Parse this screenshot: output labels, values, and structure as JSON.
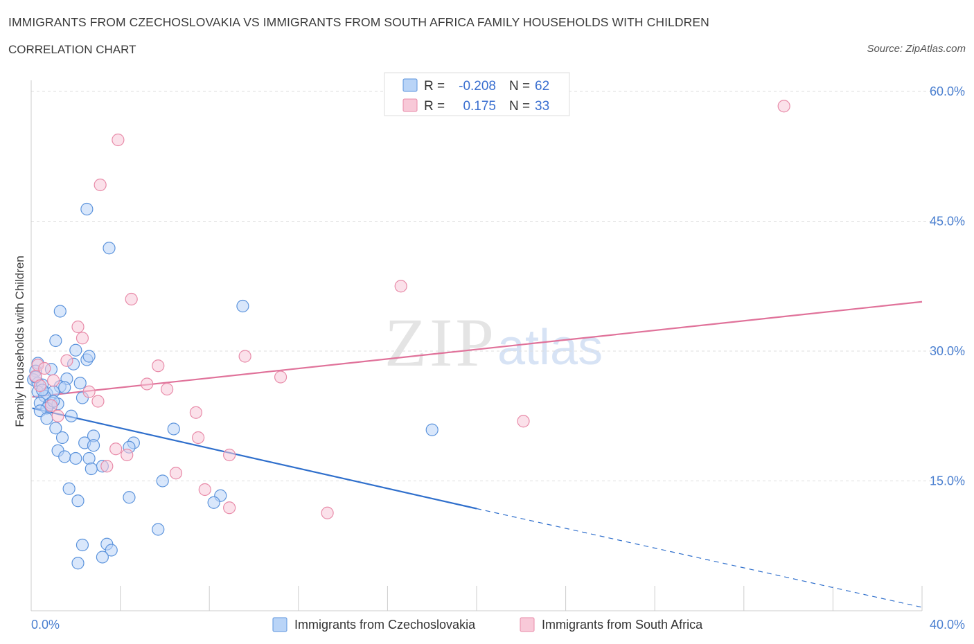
{
  "header": {
    "title": "IMMIGRANTS FROM CZECHOSLOVAKIA VS IMMIGRANTS FROM SOUTH AFRICA FAMILY HOUSEHOLDS WITH CHILDREN",
    "subtitle": "CORRELATION CHART",
    "source": "Source: ZipAtlas.com"
  },
  "watermark": {
    "zip": "ZIP",
    "atlas": "atlas"
  },
  "stats": {
    "r_label": "R =",
    "n_label": "N =",
    "czech": {
      "r": "-0.208",
      "n": "62"
    },
    "south_africa": {
      "r": "0.175",
      "n": "33"
    }
  },
  "colors": {
    "czech_fill": "#b9d4f7",
    "czech_stroke": "#5b93dc",
    "czech_line": "#2f6fcc",
    "sa_fill": "#f8c9d8",
    "sa_stroke": "#e88aa8",
    "sa_line": "#e0729a",
    "grid": "#dddddd",
    "tick_text": "#4a7fd0"
  },
  "chart_data": {
    "type": "scatter",
    "title": "IMMIGRANTS FROM CZECHOSLOVAKIA VS IMMIGRANTS FROM SOUTH AFRICA FAMILY HOUSEHOLDS WITH CHILDREN",
    "xlabel": "",
    "ylabel": "Family Households with Children",
    "xlim": [
      0,
      40
    ],
    "ylim": [
      0,
      60
    ],
    "x_tick_labels": [
      "0.0%",
      "40.0%"
    ],
    "y_ticks": [
      15,
      30,
      45,
      60
    ],
    "y_tick_labels": [
      "15.0%",
      "30.0%",
      "45.0%",
      "60.0%"
    ],
    "grid": true,
    "legend_position": "bottom-center",
    "series": [
      {
        "name": "Immigrants from Czechoslovakia",
        "r": -0.208,
        "n": 62,
        "trend": {
          "x_start": 0.05,
          "y_start": 23.4,
          "x_solid_end": 20.0,
          "y_solid_end": 11.8,
          "x_dash_end": 40.0,
          "y_dash_end": 0.4
        },
        "points": [
          [
            2.5,
            46.4
          ],
          [
            3.5,
            41.9
          ],
          [
            1.3,
            34.6
          ],
          [
            9.5,
            35.2
          ],
          [
            1.1,
            31.2
          ],
          [
            2.0,
            30.1
          ],
          [
            2.5,
            29.0
          ],
          [
            2.6,
            29.4
          ],
          [
            0.3,
            28.6
          ],
          [
            1.9,
            28.5
          ],
          [
            0.2,
            27.7
          ],
          [
            0.9,
            27.9
          ],
          [
            0.1,
            26.7
          ],
          [
            0.3,
            26.3
          ],
          [
            2.2,
            26.3
          ],
          [
            1.6,
            26.8
          ],
          [
            0.5,
            26.1
          ],
          [
            1.3,
            25.9
          ],
          [
            1.5,
            25.8
          ],
          [
            0.3,
            25.3
          ],
          [
            0.7,
            25.1
          ],
          [
            1.0,
            25.3
          ],
          [
            0.6,
            24.8
          ],
          [
            2.3,
            24.6
          ],
          [
            0.4,
            24.0
          ],
          [
            0.8,
            23.8
          ],
          [
            0.9,
            24.0
          ],
          [
            1.2,
            23.9
          ],
          [
            0.7,
            23.4
          ],
          [
            0.4,
            23.1
          ],
          [
            0.7,
            22.2
          ],
          [
            1.8,
            22.5
          ],
          [
            1.1,
            21.1
          ],
          [
            6.4,
            21.0
          ],
          [
            18.0,
            20.9
          ],
          [
            1.4,
            20.0
          ],
          [
            2.8,
            20.2
          ],
          [
            2.4,
            19.4
          ],
          [
            2.8,
            19.1
          ],
          [
            4.6,
            19.4
          ],
          [
            4.4,
            18.9
          ],
          [
            1.2,
            18.5
          ],
          [
            1.5,
            17.8
          ],
          [
            2.0,
            17.6
          ],
          [
            2.6,
            17.6
          ],
          [
            3.2,
            16.7
          ],
          [
            2.7,
            16.4
          ],
          [
            5.9,
            15.0
          ],
          [
            1.7,
            14.1
          ],
          [
            8.5,
            13.3
          ],
          [
            4.4,
            13.1
          ],
          [
            8.2,
            12.5
          ],
          [
            2.1,
            12.7
          ],
          [
            5.7,
            9.4
          ],
          [
            2.3,
            7.6
          ],
          [
            3.4,
            7.7
          ],
          [
            3.6,
            7.0
          ],
          [
            3.2,
            6.2
          ],
          [
            2.1,
            5.5
          ],
          [
            0.2,
            27.0
          ],
          [
            0.5,
            25.5
          ],
          [
            1.0,
            24.2
          ]
        ]
      },
      {
        "name": "Immigrants from South Africa",
        "r": 0.175,
        "n": 33,
        "trend": {
          "x_start": 0.05,
          "y_start": 24.7,
          "x_end": 40.0,
          "y_end": 35.7
        },
        "points": [
          [
            33.8,
            58.3
          ],
          [
            3.9,
            54.4
          ],
          [
            3.1,
            49.2
          ],
          [
            16.6,
            37.5
          ],
          [
            4.5,
            36.0
          ],
          [
            2.1,
            32.8
          ],
          [
            2.3,
            31.5
          ],
          [
            0.3,
            28.4
          ],
          [
            1.6,
            28.9
          ],
          [
            9.6,
            29.4
          ],
          [
            0.6,
            28.0
          ],
          [
            5.7,
            28.3
          ],
          [
            0.2,
            27.1
          ],
          [
            1.0,
            26.6
          ],
          [
            11.2,
            27.0
          ],
          [
            5.2,
            26.2
          ],
          [
            0.4,
            26.0
          ],
          [
            6.1,
            25.6
          ],
          [
            2.6,
            25.3
          ],
          [
            3.0,
            24.2
          ],
          [
            7.4,
            22.9
          ],
          [
            0.9,
            23.7
          ],
          [
            1.2,
            22.5
          ],
          [
            22.1,
            21.9
          ],
          [
            7.5,
            20.0
          ],
          [
            3.8,
            18.7
          ],
          [
            8.9,
            18.0
          ],
          [
            4.3,
            18.0
          ],
          [
            3.4,
            16.7
          ],
          [
            6.5,
            15.9
          ],
          [
            7.8,
            14.0
          ],
          [
            8.9,
            11.9
          ],
          [
            13.3,
            11.3
          ]
        ]
      }
    ],
    "extra_points_note": ""
  }
}
